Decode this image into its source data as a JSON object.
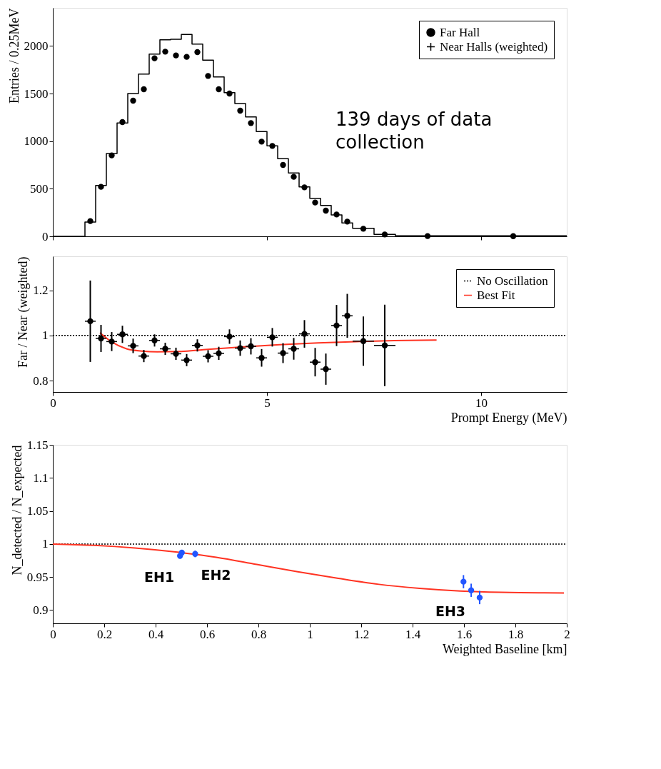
{
  "chart_data": [
    {
      "type": "histogram",
      "ylabel": "Entries / 0.25MeV",
      "xlim": [
        0,
        12
      ],
      "xticks": [
        0,
        5,
        10
      ],
      "ylim": [
        0,
        2400
      ],
      "yticks": [
        0,
        500,
        1000,
        1500,
        2000
      ],
      "tick_labels": "y",
      "legend": "top right",
      "bins": [
        0,
        0.75,
        1.0,
        1.25,
        1.5,
        1.75,
        2.0,
        2.25,
        2.5,
        2.75,
        3.0,
        3.25,
        3.5,
        3.75,
        4.0,
        4.25,
        4.5,
        4.75,
        5.0,
        5.25,
        5.5,
        5.75,
        6.0,
        6.25,
        6.5,
        6.75,
        7.0,
        7.5,
        8.0,
        9.5,
        12
      ],
      "annotations": [
        "139 days of data collection"
      ],
      "series": [
        {
          "name": "Far Hall",
          "type": "scatter",
          "marker": "circle",
          "color": "#000000",
          "x": [
            0.875,
            1.125,
            1.375,
            1.625,
            1.875,
            2.125,
            2.375,
            2.625,
            2.875,
            3.125,
            3.375,
            3.625,
            3.875,
            4.125,
            4.375,
            4.625,
            4.875,
            5.125,
            5.375,
            5.625,
            5.875,
            6.125,
            6.375,
            6.625,
            6.875,
            7.25,
            7.75,
            8.75,
            10.75
          ],
          "values": [
            160,
            520,
            850,
            1200,
            1425,
            1545,
            1870,
            1940,
            1900,
            1885,
            1935,
            1685,
            1545,
            1500,
            1320,
            1190,
            995,
            950,
            750,
            625,
            515,
            355,
            270,
            230,
            155,
            80,
            20,
            3,
            2
          ]
        },
        {
          "name": "Near Halls (weighted)",
          "color": "#000000",
          "values": [
            0,
            150,
            535,
            870,
            1190,
            1500,
            1705,
            1915,
            2065,
            2070,
            2120,
            2020,
            1850,
            1675,
            1510,
            1395,
            1255,
            1100,
            950,
            815,
            665,
            520,
            400,
            325,
            225,
            140,
            85,
            20,
            6,
            5
          ]
        }
      ]
    },
    {
      "type": "scatter",
      "xlabel": "Prompt Energy (MeV)",
      "ylabel": "Far / Near (weighted)",
      "xlim": [
        0,
        12
      ],
      "xticks": [
        0,
        5,
        10
      ],
      "ylim": [
        0.75,
        1.35
      ],
      "yticks": [
        0.8,
        1,
        1.2
      ],
      "legend": "top right",
      "ref_lines": [
        {
          "axis": "y",
          "value": 1,
          "label": "No Oscillation",
          "color": "#000000",
          "line_style": "dotted"
        }
      ],
      "series": [
        {
          "marker": "circle",
          "color": "#000000",
          "x": [
            0.875,
            1.125,
            1.375,
            1.625,
            1.875,
            2.125,
            2.375,
            2.625,
            2.875,
            3.125,
            3.375,
            3.625,
            3.875,
            4.125,
            4.375,
            4.625,
            4.875,
            5.125,
            5.375,
            5.625,
            5.875,
            6.125,
            6.375,
            6.625,
            6.875,
            7.25,
            7.75
          ],
          "values": [
            1.063,
            0.987,
            0.973,
            1.005,
            0.954,
            0.909,
            0.978,
            0.941,
            0.919,
            0.891,
            0.956,
            0.908,
            0.921,
            0.995,
            0.944,
            0.952,
            0.901,
            0.992,
            0.922,
            0.941,
            1.007,
            0.882,
            0.851,
            1.044,
            1.087,
            0.975,
            0.956
          ],
          "errors": [
            0.18,
            0.06,
            0.042,
            0.038,
            0.032,
            0.027,
            0.027,
            0.027,
            0.027,
            0.027,
            0.027,
            0.027,
            0.029,
            0.032,
            0.034,
            0.036,
            0.039,
            0.041,
            0.044,
            0.048,
            0.061,
            0.063,
            0.069,
            0.091,
            0.097,
            0.109,
            0.18
          ],
          "xerrors": [
            0.125,
            0.125,
            0.125,
            0.125,
            0.125,
            0.125,
            0.125,
            0.125,
            0.125,
            0.125,
            0.125,
            0.125,
            0.125,
            0.125,
            0.125,
            0.125,
            0.125,
            0.125,
            0.125,
            0.125,
            0.125,
            0.125,
            0.125,
            0.125,
            0.125,
            0.25,
            0.25
          ]
        },
        {
          "name": "Best Fit",
          "type": "line",
          "color": "#ff3322",
          "x": [
            1.1,
            1.37,
            1.72,
            2.08,
            2.44,
            2.97,
            3.51,
            4.4,
            5.29,
            6.19,
            7.08,
            7.97,
            8.96
          ],
          "values": [
            1.012,
            0.972,
            0.941,
            0.931,
            0.928,
            0.929,
            0.937,
            0.949,
            0.959,
            0.967,
            0.973,
            0.977,
            0.98
          ]
        }
      ]
    },
    {
      "type": "line",
      "xlabel": "Weighted Baseline [km]",
      "ylabel": "N_detected / N_expected",
      "xlim": [
        0,
        2
      ],
      "xticks": [
        0,
        0.2,
        0.4,
        0.6,
        0.8,
        1,
        1.2,
        1.4,
        1.6,
        1.8,
        2
      ],
      "ylim": [
        0.88,
        1.15
      ],
      "yticks": [
        0.9,
        0.95,
        1,
        1.05,
        1.1,
        1.15
      ],
      "ref_lines": [
        {
          "axis": "y",
          "value": 1,
          "color": "#000000",
          "line_style": "dotted"
        }
      ],
      "annotations": [
        {
          "text": "EH1",
          "x": 0.495,
          "y": 0.982
        },
        {
          "text": "EH2",
          "x": 0.554,
          "y": 0.985
        },
        {
          "text": "EH3",
          "x": 1.628,
          "y": 0.93
        }
      ],
      "series": [
        {
          "color": "#ff3322",
          "x": [
            0,
            0.161,
            0.32,
            0.478,
            0.636,
            0.794,
            0.953,
            1.111,
            1.269,
            1.427,
            1.585,
            1.744,
            1.989
          ],
          "values": [
            1.0,
            0.998,
            0.994,
            0.988,
            0.98,
            0.969,
            0.958,
            0.948,
            0.939,
            0.933,
            0.929,
            0.927,
            0.926
          ]
        },
        {
          "type": "scatter",
          "marker": "circle",
          "color": "#2255ff",
          "x": [
            0.495,
            0.502,
            0.554,
            1.598,
            1.628,
            1.661
          ],
          "values": [
            0.982,
            0.987,
            0.985,
            0.943,
            0.93,
            0.919
          ],
          "errors": [
            0.004,
            0.004,
            0.005,
            0.01,
            0.01,
            0.01
          ]
        }
      ]
    }
  ]
}
